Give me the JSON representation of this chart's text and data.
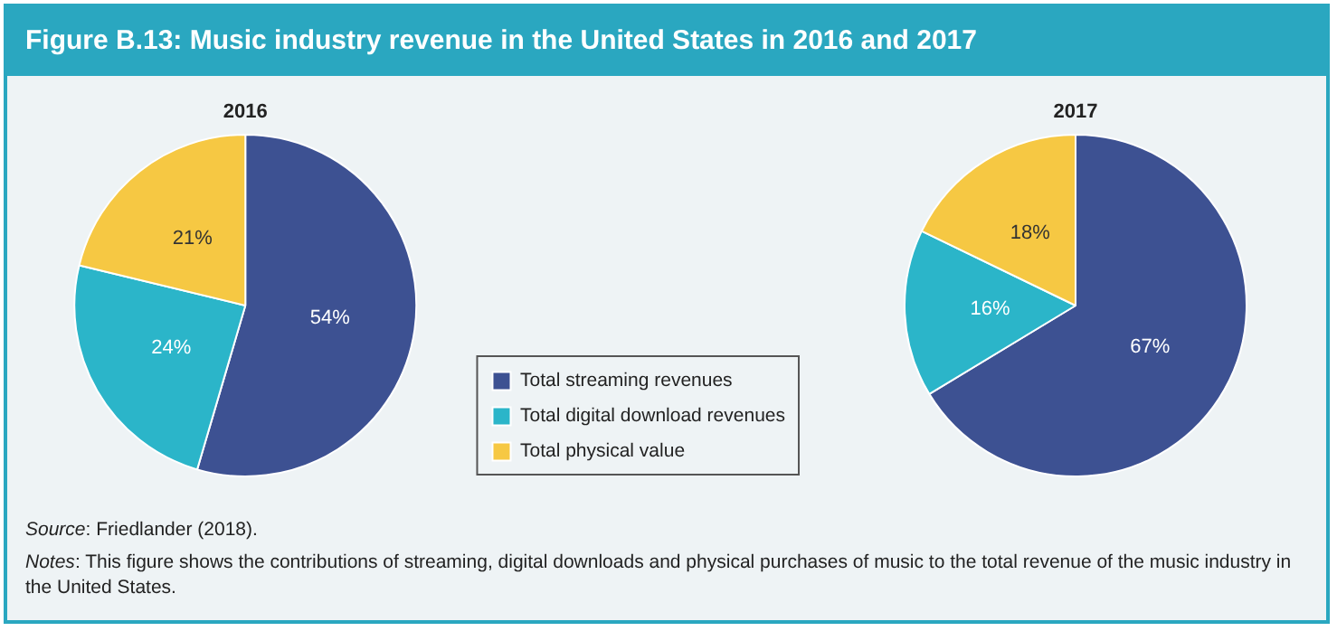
{
  "chart_data": [
    {
      "type": "other",
      "title": "Figure B.13: Music industry revenue in the United States in 2016 and 2017",
      "annotations": [
        "Source: Friedlander (2018).",
        "Notes: This figure shows the contributions of streaming, digital downloads and physical purchases of music to the total revenue of the music industry in the United States."
      ]
    },
    {
      "type": "pie",
      "title": "2016",
      "categories": [
        "Total streaming revenues",
        "Total digital download revenues",
        "Total physical value"
      ],
      "values": [
        54,
        24,
        21
      ],
      "colors": [
        "#3d5192",
        "#2bb5c9",
        "#f6c843"
      ],
      "value_labels": [
        "54%",
        "24%",
        "21%"
      ],
      "legend": "right"
    },
    {
      "type": "pie",
      "title": "2017",
      "categories": [
        null,
        null,
        null
      ],
      "values": [
        67,
        16,
        18
      ],
      "colors": [
        "#3d5192",
        "#2bb5c9",
        "#f6c843"
      ],
      "value_labels": [
        "67%",
        "16%",
        "18%"
      ],
      "legend": false
    }
  ]
}
